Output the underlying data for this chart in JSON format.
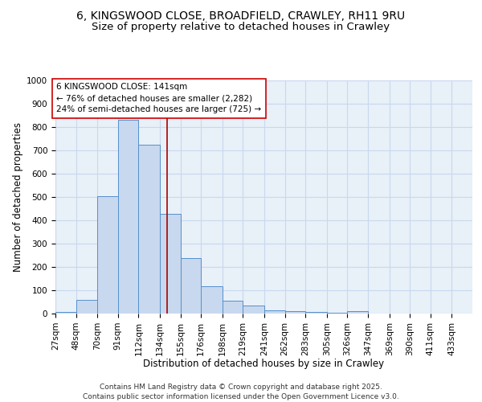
{
  "title1": "6, KINGSWOOD CLOSE, BROADFIELD, CRAWLEY, RH11 9RU",
  "title2": "Size of property relative to detached houses in Crawley",
  "xlabel": "Distribution of detached houses by size in Crawley",
  "ylabel": "Number of detached properties",
  "bar_edges": [
    27,
    48,
    70,
    91,
    112,
    134,
    155,
    176,
    198,
    219,
    241,
    262,
    283,
    305,
    326,
    347,
    369,
    390,
    411,
    433,
    454
  ],
  "bar_heights": [
    8,
    60,
    505,
    830,
    725,
    428,
    238,
    117,
    55,
    33,
    15,
    12,
    8,
    5,
    10,
    0,
    0,
    0,
    0,
    0
  ],
  "bar_color": "#c8d8ee",
  "bar_edge_color": "#5590cc",
  "grid_color": "#c8d8ee",
  "bg_color": "#e8f0f8",
  "property_size": 141,
  "vline_color": "#aa0000",
  "annotation_box_color": "#cc0000",
  "annotation_text_line1": "6 KINGSWOOD CLOSE: 141sqm",
  "annotation_text_line2": "← 76% of detached houses are smaller (2,282)",
  "annotation_text_line3": "24% of semi-detached houses are larger (725) →",
  "ylim": [
    0,
    1000
  ],
  "yticks": [
    0,
    100,
    200,
    300,
    400,
    500,
    600,
    700,
    800,
    900,
    1000
  ],
  "footnote": "Contains HM Land Registry data © Crown copyright and database right 2025.\nContains public sector information licensed under the Open Government Licence v3.0.",
  "title_fontsize": 10,
  "subtitle_fontsize": 9.5,
  "axis_label_fontsize": 8.5,
  "tick_fontsize": 7.5,
  "annotation_fontsize": 7.5,
  "footnote_fontsize": 6.5
}
